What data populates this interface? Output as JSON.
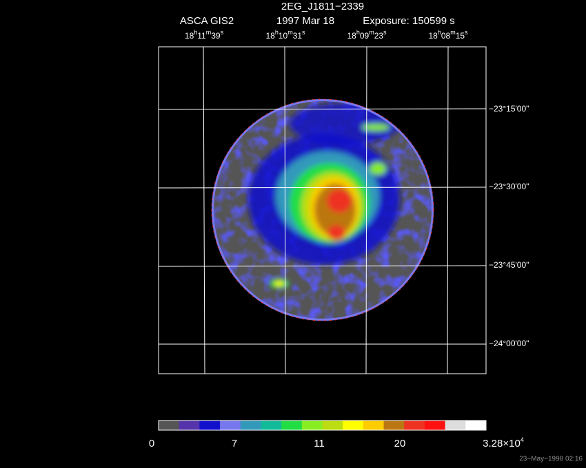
{
  "header": {
    "title": "2EG_J1811−2339",
    "instrument": "ASCA GIS2",
    "date": "1997 Mar 18",
    "exposure": "Exposure: 150599 s"
  },
  "ra_labels": [
    [
      "18",
      "h",
      "11",
      "m",
      "39",
      "s"
    ],
    [
      "18",
      "h",
      "10",
      "m",
      "31",
      "s"
    ],
    [
      "18",
      "h",
      "09",
      "m",
      "23",
      "s"
    ],
    [
      "18",
      "h",
      "08",
      "m",
      "15",
      "s"
    ]
  ],
  "dec_labels": [
    "−23°15'00\"",
    "−23°30'00\"",
    "−23°45'00\"",
    "−24°00'00\""
  ],
  "colorbar": {
    "colors": [
      "#555555",
      "#5533aa",
      "#1111cc",
      "#7777ee",
      "#3399bb",
      "#11bb99",
      "#22dd44",
      "#88ee22",
      "#bbdd11",
      "#ffff00",
      "#ffcc00",
      "#bb7711",
      "#ee3322",
      "#ff1111",
      "#dddddd",
      "#ffffff"
    ],
    "labels": [
      [
        "0"
      ],
      [
        "7"
      ],
      [
        "11"
      ],
      [
        "20"
      ],
      [
        "3.28×10",
        "4"
      ]
    ]
  },
  "timestamp": "23−May−1998 02:16"
}
